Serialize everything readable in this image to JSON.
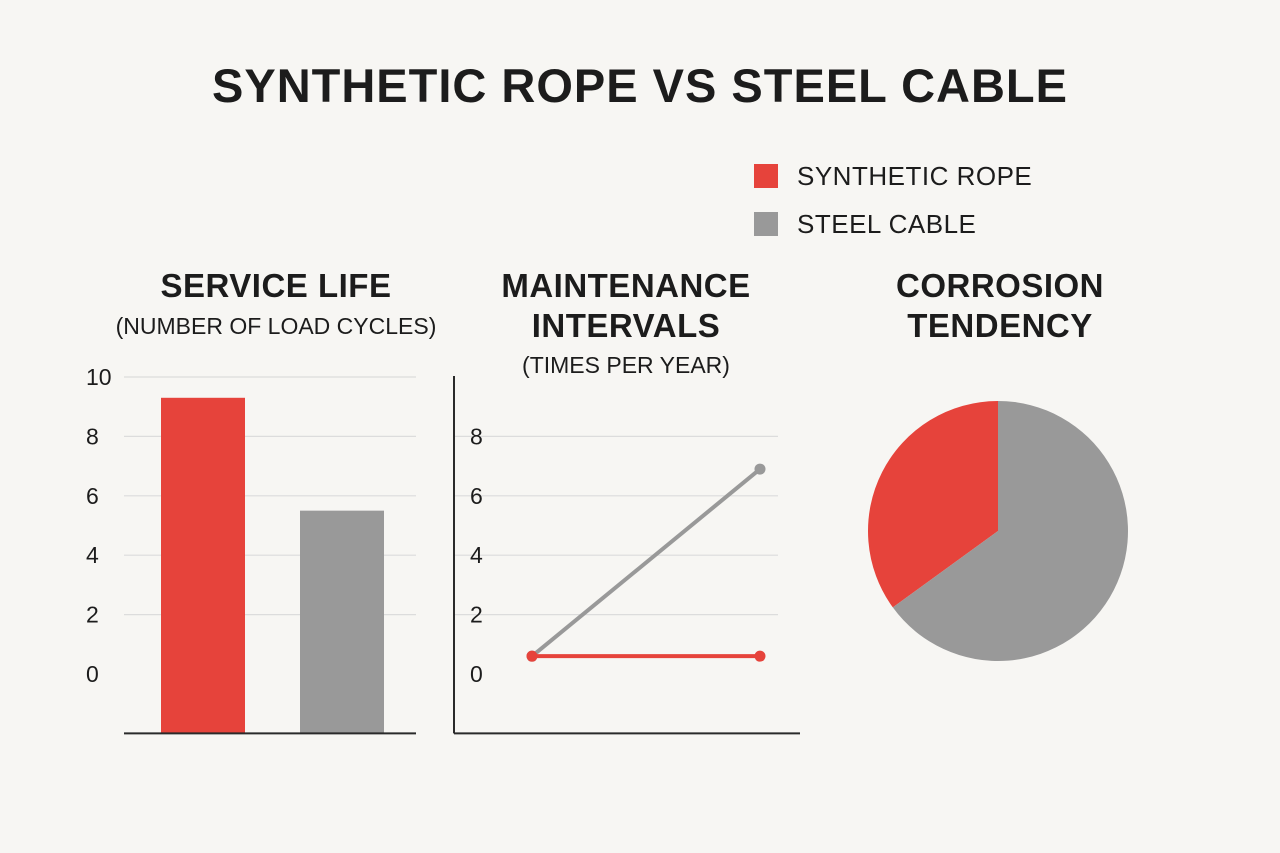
{
  "title": "SYNTHETIC ROPE VS STEEL CABLE",
  "legend": [
    {
      "label": "SYNTHETIC ROPE",
      "color": "#e6433b"
    },
    {
      "label": "STEEL CABLE",
      "color": "#999999"
    }
  ],
  "colors": {
    "grid": "#dcdcdc",
    "axis": "#2a2a2a"
  },
  "panels": {
    "service_life": {
      "title": "SERVICE LIFE",
      "subtitle": "(NUMBER OF LOAD CYCLES)"
    },
    "maintenance": {
      "title_line1": "MAINTENANCE",
      "title_line2": "INTERVALS",
      "subtitle": "(TIMES PER YEAR)"
    },
    "corrosion": {
      "title_line1": "CORROSION",
      "title_line2": "TENDENCY"
    }
  },
  "chart_data": [
    {
      "type": "bar",
      "title": "SERVICE LIFE",
      "subtitle": "(NUMBER OF LOAD CYCLES)",
      "categories": [
        "SYNTHETIC ROPE",
        "STEEL CABLE"
      ],
      "values": [
        9.3,
        5.5
      ],
      "ylim": [
        -2,
        10
      ],
      "yticks": [
        0,
        2,
        4,
        6,
        8,
        10
      ],
      "grid": true
    },
    {
      "type": "line",
      "title": "MAINTENANCE INTERVALS",
      "subtitle": "(TIMES PER YEAR)",
      "ylim": [
        -2,
        10
      ],
      "yticks": [
        0,
        2,
        4,
        6,
        8
      ],
      "grid": true,
      "series": [
        {
          "name": "SYNTHETIC ROPE",
          "color": "#e6433b",
          "values": [
            0.6,
            0.6
          ]
        },
        {
          "name": "STEEL CABLE",
          "color": "#999999",
          "values": [
            0.6,
            6.9
          ]
        }
      ]
    },
    {
      "type": "pie",
      "title": "CORROSION TENDENCY",
      "labels": [
        "SYNTHETIC ROPE",
        "STEEL CABLE"
      ],
      "values": [
        35,
        65
      ],
      "colors": [
        "#e6433b",
        "#999999"
      ]
    }
  ]
}
